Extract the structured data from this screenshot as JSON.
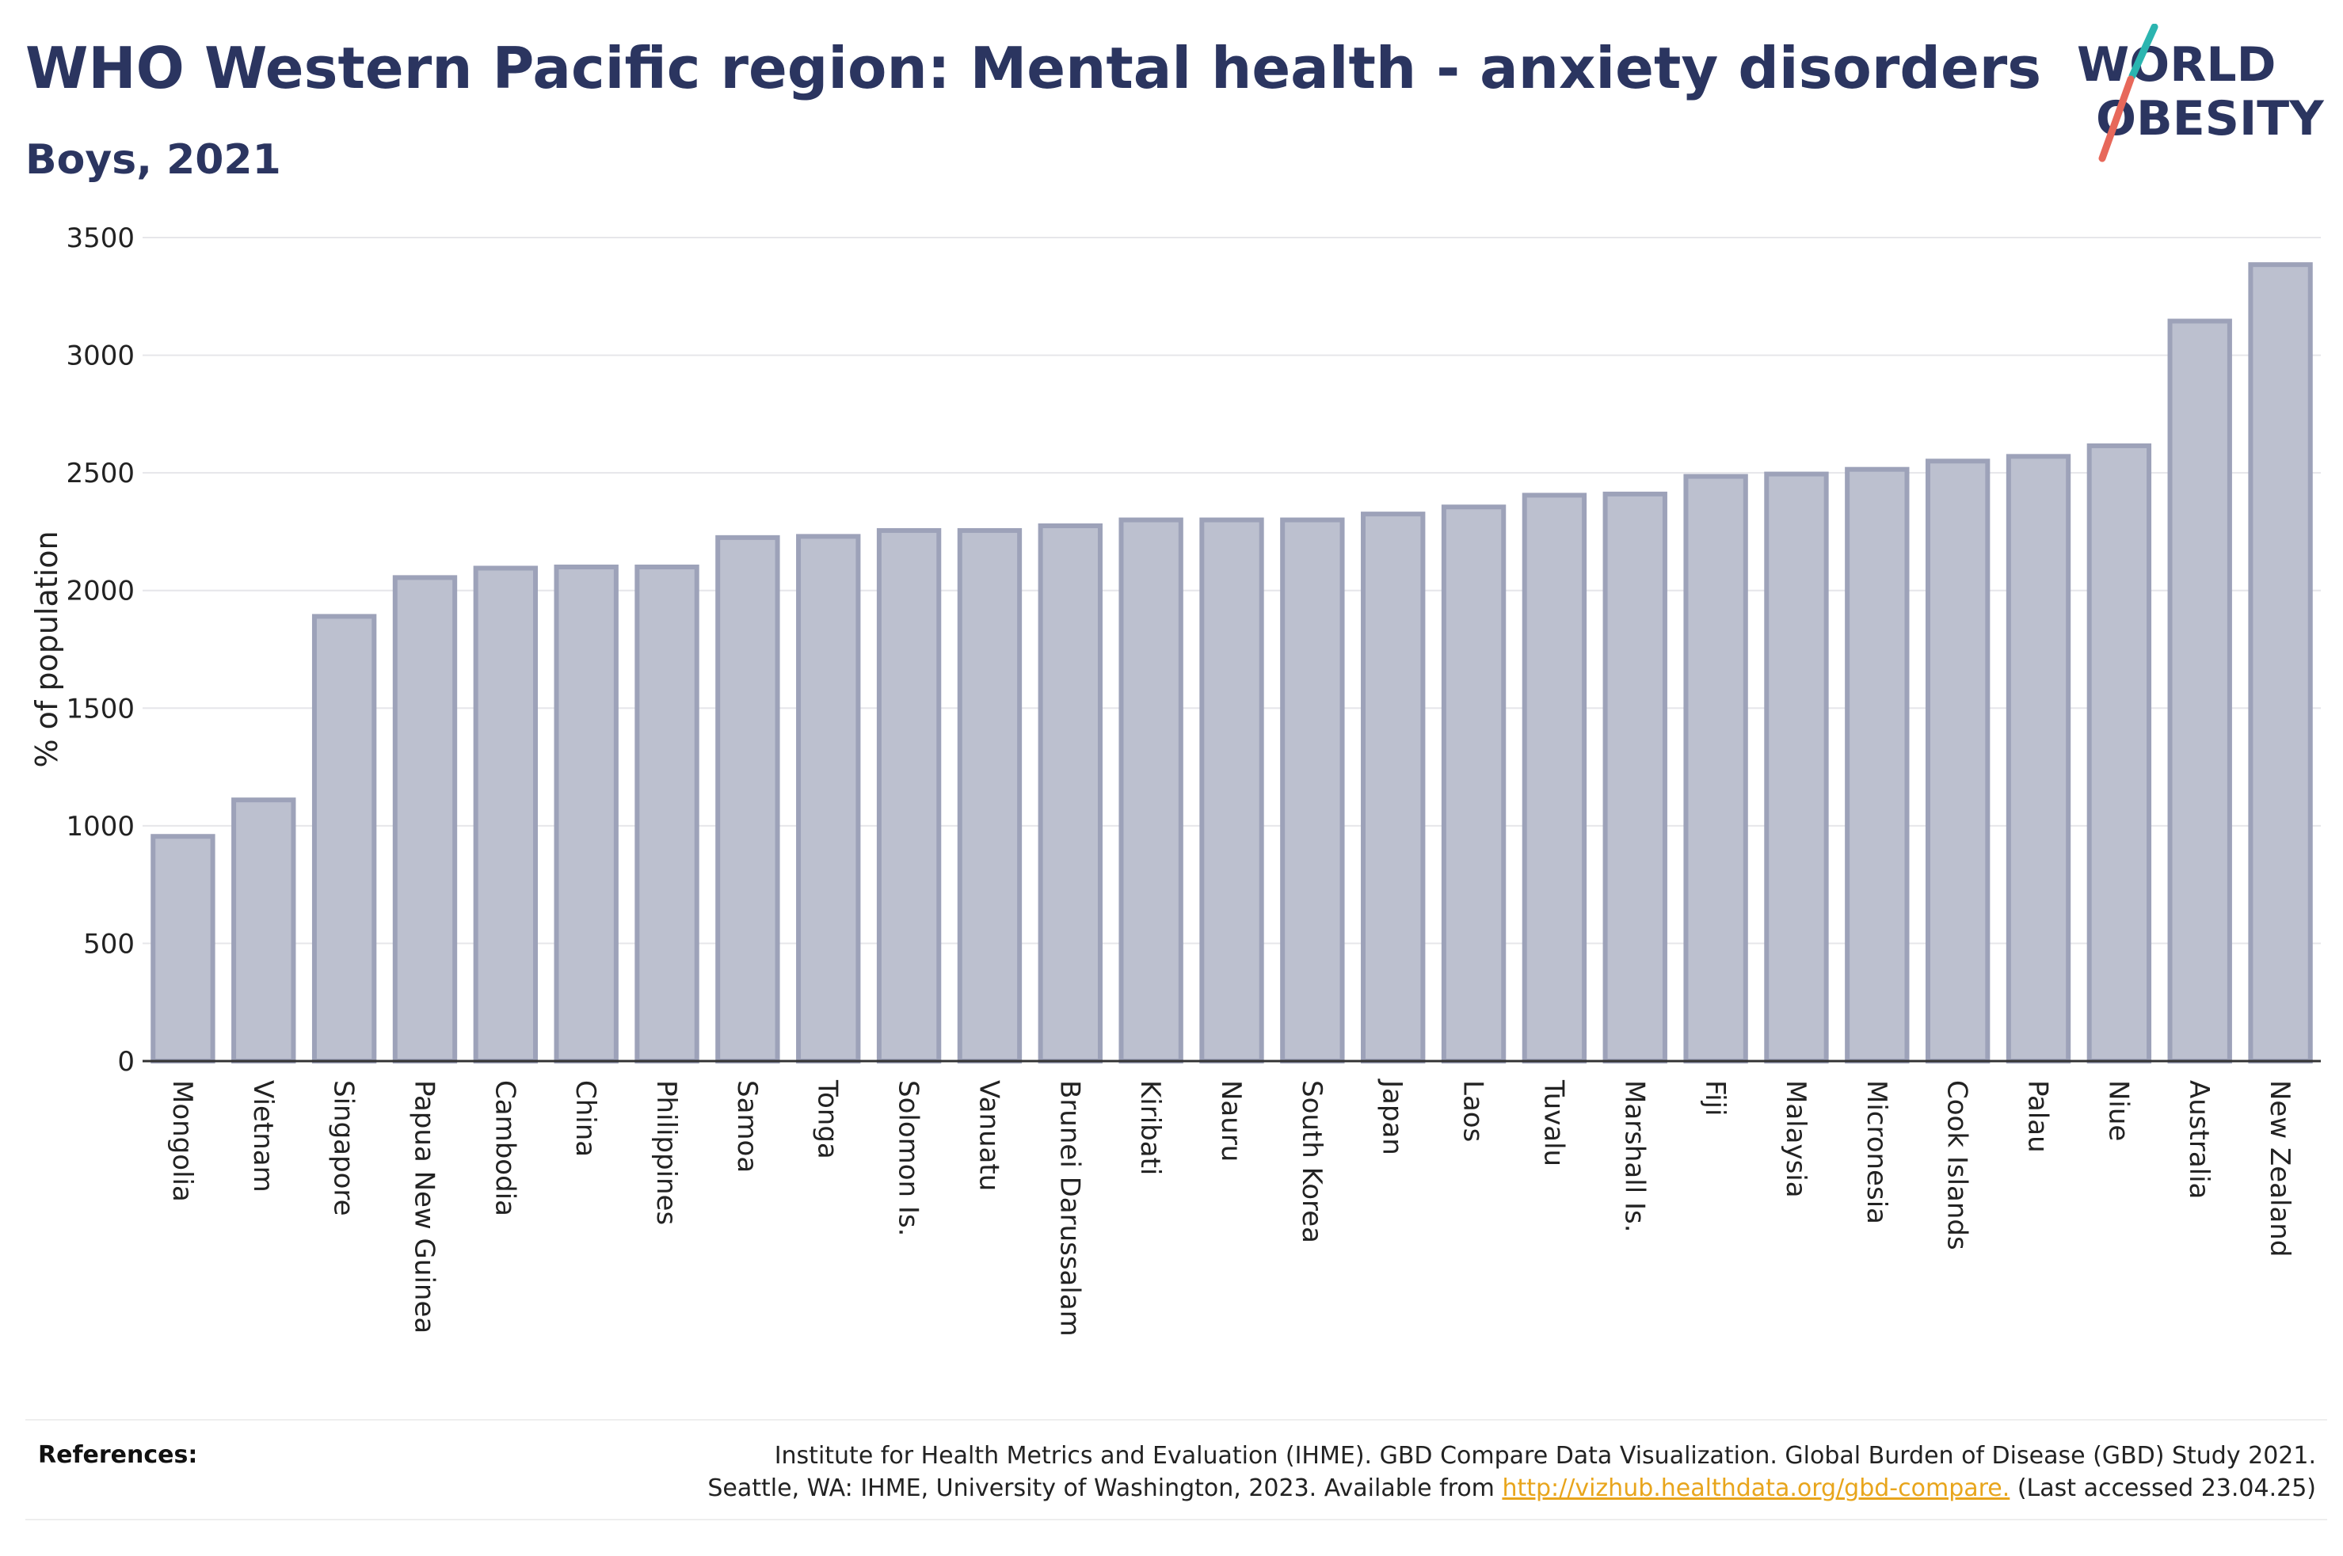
{
  "title": "WHO Western Pacific region: Mental health - anxiety disorders",
  "subtitle": "Boys, 2021",
  "logo": {
    "line1": "WORLD",
    "line2": "OBESITY",
    "text_color": "#2b3560",
    "slash_colors": [
      "#2bb5b0",
      "#e7685a"
    ]
  },
  "chart_data": {
    "type": "bar",
    "title": "WHO Western Pacific region: Mental health - anxiety disorders",
    "subtitle": "Boys, 2021",
    "xlabel": "",
    "ylabel": "% of population",
    "ylim": [
      0,
      3500
    ],
    "yticks": [
      0,
      500,
      1000,
      1500,
      2000,
      2500,
      3000,
      3500
    ],
    "grid": true,
    "legend": "none",
    "bar_fill": "#bcc0cf",
    "bar_stroke": "#9da2b9",
    "categories": [
      "Mongolia",
      "Vietnam",
      "Singapore",
      "Papua New Guinea",
      "Cambodia",
      "China",
      "Philippines",
      "Samoa",
      "Tonga",
      "Solomon Is.",
      "Vanuatu",
      "Brunei Darussalam",
      "Kiribati",
      "Nauru",
      "South Korea",
      "Japan",
      "Laos",
      "Tuvalu",
      "Marshall Is.",
      "Fiji",
      "Malaysia",
      "Micronesia",
      "Cook Islands",
      "Palau",
      "Niue",
      "Australia",
      "New Zealand"
    ],
    "values": [
      955,
      1110,
      1890,
      2055,
      2095,
      2100,
      2100,
      2225,
      2230,
      2255,
      2255,
      2275,
      2300,
      2300,
      2300,
      2325,
      2355,
      2405,
      2410,
      2485,
      2495,
      2515,
      2550,
      2570,
      2615,
      3145,
      3385
    ]
  },
  "references": {
    "label": "References:",
    "line1": "Institute for Health Metrics and Evaluation (IHME). GBD Compare Data Visualization. Global Burden of Disease (GBD) Study 2021.",
    "line2_prefix": "Seattle, WA: IHME, University of Washington, 2023. Available from ",
    "link": "http://vizhub.healthdata.org/gbd-compare.",
    "line2_suffix": " (Last accessed 23.04.25)"
  }
}
